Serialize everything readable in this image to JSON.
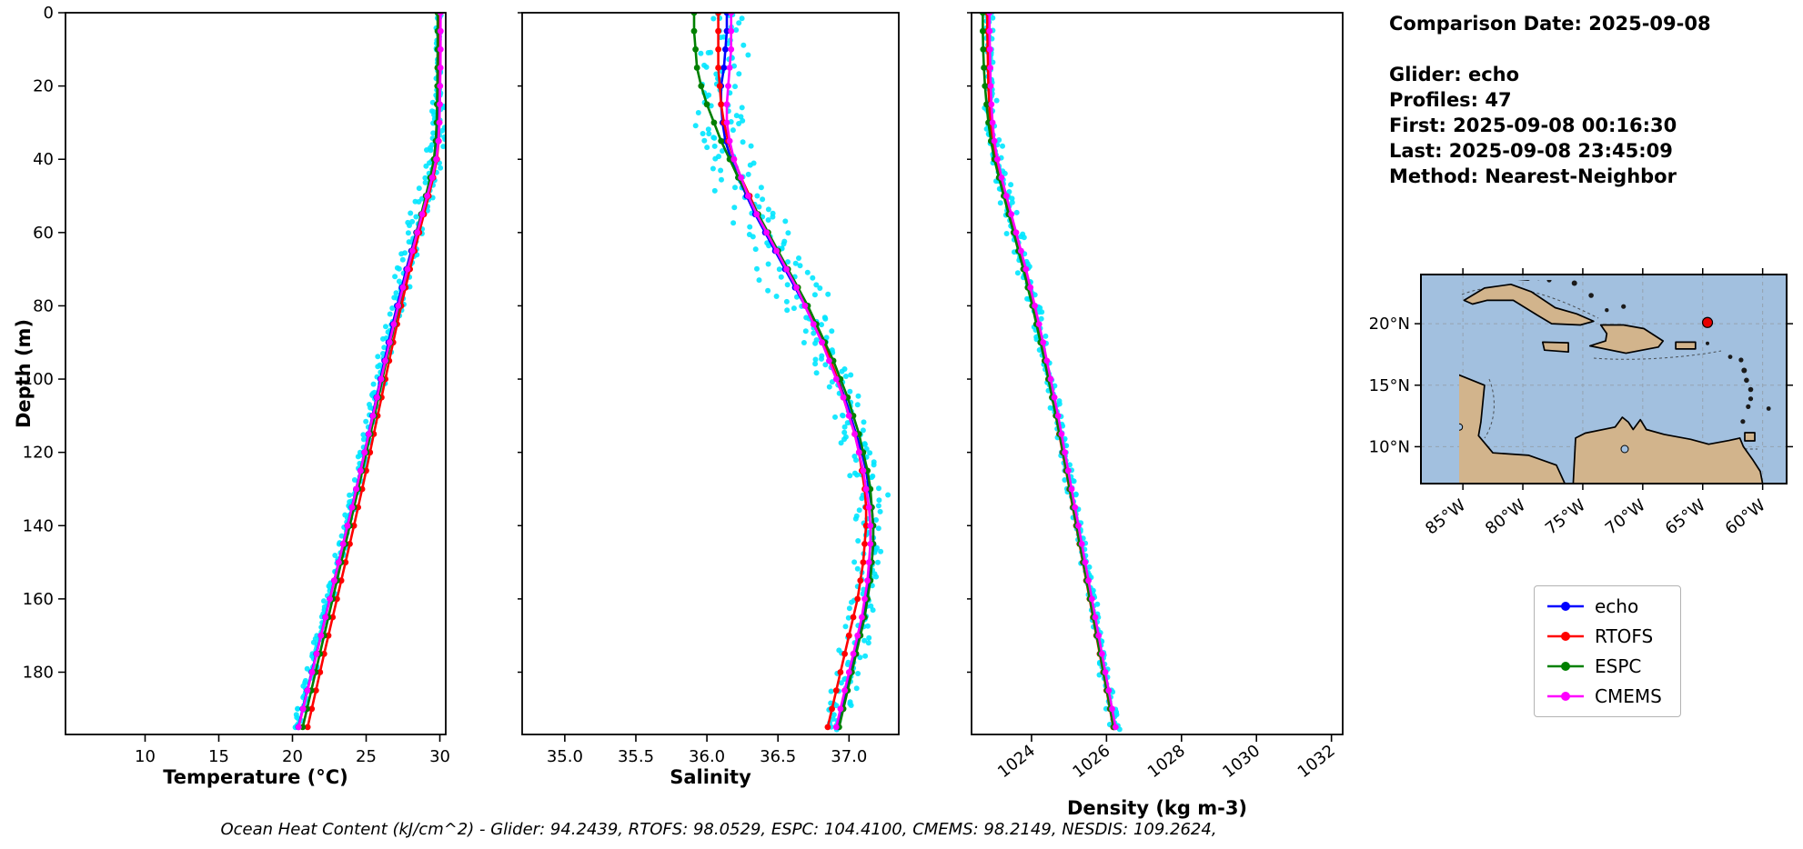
{
  "info_panel": {
    "comparison_date": "Comparison Date: 2025-09-08",
    "glider": "Glider: echo",
    "profiles": "Profiles: 47",
    "first": "First: 2025-09-08 00:16:30",
    "last": "Last: 2025-09-08 23:45:09",
    "method": "Method: Nearest-Neighbor"
  },
  "footer": {
    "ohc_line": "Ocean Heat Content (kJ/cm^2) - Glider: 94.2439,  RTOFS: 98.0529,  ESPC: 104.4100,  CMEMS: 98.2149,  NESDIS: 109.2624,"
  },
  "legend": {
    "items": [
      {
        "label": "echo",
        "color": "#0000ff"
      },
      {
        "label": "RTOFS",
        "color": "#ff0000"
      },
      {
        "label": "ESPC",
        "color": "#008000"
      },
      {
        "label": "CMEMS",
        "color": "#ff00ff"
      }
    ]
  },
  "map": {
    "extent": {
      "lon_west_w": 88.5,
      "lon_east_w": 58.0,
      "lat_north": 24.0,
      "lat_south": 7.0
    },
    "lon_ticks": [
      {
        "value_w": 85,
        "label": "85°W"
      },
      {
        "value_w": 80,
        "label": "80°W"
      },
      {
        "value_w": 75,
        "label": "75°W"
      },
      {
        "value_w": 70,
        "label": "70°W"
      },
      {
        "value_w": 65,
        "label": "65°W"
      },
      {
        "value_w": 60,
        "label": "60°W"
      }
    ],
    "lat_ticks": [
      {
        "value_n": 20,
        "label": "20°N"
      },
      {
        "value_n": 15,
        "label": "15°N"
      },
      {
        "value_n": 10,
        "label": "10°N"
      }
    ],
    "glider_marker": {
      "lon_w": 64.6,
      "lat_n": 20.1,
      "color": "#e60000"
    },
    "ocean_color": "#a2c0df",
    "land_color": "#d2b48c",
    "coast_color": "#000000"
  },
  "chart_data": {
    "type": "line",
    "subtype": "vertical-profile",
    "ylabel": "Depth (m)",
    "ylim": [
      0,
      197
    ],
    "depth_ticks": [
      0,
      20,
      40,
      60,
      80,
      100,
      120,
      140,
      160,
      180
    ],
    "depths": [
      0,
      5,
      10,
      15,
      20,
      25,
      30,
      35,
      40,
      45,
      50,
      55,
      60,
      65,
      70,
      75,
      80,
      85,
      90,
      95,
      100,
      105,
      110,
      115,
      120,
      125,
      130,
      135,
      140,
      145,
      150,
      155,
      160,
      165,
      170,
      175,
      180,
      185,
      190,
      195
    ],
    "series_names": [
      "echo",
      "RTOFS",
      "ESPC",
      "CMEMS"
    ],
    "series_colors": [
      "#0000ff",
      "#ff0000",
      "#008000",
      "#ff00ff"
    ],
    "scatter": {
      "name": "raw-glider-observations",
      "color": "#00e5ff",
      "amplitude": [
        0.35,
        0.11,
        0.12
      ]
    },
    "panels": [
      {
        "id": "temperature",
        "xlabel": "Temperature (°C)",
        "xlim": [
          4.6,
          30.4
        ],
        "xtick_values": [
          10,
          15,
          20,
          25,
          30
        ],
        "xtick_labels": [
          "10",
          "15",
          "20",
          "25",
          "30"
        ],
        "xtick_rotation": 0,
        "series": {
          "echo": [
            29.95,
            29.95,
            29.95,
            29.94,
            29.93,
            29.92,
            29.9,
            29.85,
            29.7,
            29.42,
            29.08,
            28.74,
            28.4,
            28.06,
            27.73,
            27.41,
            27.1,
            26.8,
            26.52,
            26.24,
            25.97,
            25.7,
            25.43,
            25.16,
            24.89,
            24.61,
            24.32,
            24.03,
            23.73,
            23.43,
            23.13,
            22.83,
            22.53,
            22.23,
            21.93,
            21.62,
            21.31,
            21.0,
            20.7,
            20.4
          ],
          "RTOFS": [
            30.02,
            30.02,
            30.02,
            30.01,
            30.0,
            29.99,
            29.97,
            29.92,
            29.8,
            29.55,
            29.24,
            28.92,
            28.6,
            28.28,
            27.97,
            27.67,
            27.38,
            27.1,
            26.83,
            26.56,
            26.3,
            26.04,
            25.78,
            25.52,
            25.26,
            25.0,
            24.73,
            24.45,
            24.17,
            23.89,
            23.6,
            23.31,
            23.02,
            22.73,
            22.44,
            22.15,
            21.87,
            21.59,
            21.31,
            21.03
          ],
          "ESPC": [
            29.85,
            29.85,
            29.85,
            29.84,
            29.83,
            29.81,
            29.78,
            29.72,
            29.6,
            29.35,
            29.05,
            28.74,
            28.43,
            28.12,
            27.81,
            27.51,
            27.22,
            26.93,
            26.65,
            26.37,
            26.1,
            25.83,
            25.56,
            25.29,
            25.02,
            24.74,
            24.46,
            24.18,
            23.89,
            23.6,
            23.31,
            23.02,
            22.73,
            22.44,
            22.15,
            21.86,
            21.57,
            21.28,
            20.99,
            20.7
          ],
          "CMEMS": [
            30.05,
            30.05,
            30.05,
            30.04,
            30.02,
            30.0,
            29.97,
            29.9,
            29.76,
            29.48,
            29.14,
            28.8,
            28.47,
            28.14,
            27.81,
            27.49,
            27.18,
            26.88,
            26.59,
            26.3,
            26.02,
            25.74,
            25.46,
            25.18,
            24.9,
            24.62,
            24.33,
            24.04,
            23.74,
            23.44,
            23.14,
            22.84,
            22.54,
            22.24,
            21.94,
            21.64,
            21.33,
            21.02,
            20.72,
            20.42
          ]
        }
      },
      {
        "id": "salinity",
        "xlabel": "Salinity",
        "xlim": [
          34.7,
          37.35
        ],
        "xtick_values": [
          35.0,
          35.5,
          36.0,
          36.5,
          37.0
        ],
        "xtick_labels": [
          "35.0",
          "35.5",
          "36.0",
          "36.5",
          "37.0"
        ],
        "xtick_rotation": 0,
        "series": {
          "echo": [
            36.14,
            36.14,
            36.13,
            36.12,
            36.1,
            36.1,
            36.11,
            36.13,
            36.17,
            36.22,
            36.28,
            36.34,
            36.41,
            36.48,
            36.55,
            36.62,
            36.69,
            36.75,
            36.81,
            36.87,
            36.92,
            36.97,
            37.01,
            37.05,
            37.09,
            37.12,
            37.14,
            37.16,
            37.17,
            37.17,
            37.16,
            37.14,
            37.12,
            37.1,
            37.07,
            37.04,
            37.01,
            36.98,
            36.95,
            36.92
          ],
          "RTOFS": [
            36.08,
            36.08,
            36.08,
            36.08,
            36.09,
            36.1,
            36.12,
            36.15,
            36.19,
            36.24,
            36.3,
            36.36,
            36.43,
            36.5,
            36.57,
            36.64,
            36.7,
            36.76,
            36.82,
            36.87,
            36.92,
            36.96,
            37.0,
            37.04,
            37.07,
            37.09,
            37.11,
            37.12,
            37.12,
            37.11,
            37.1,
            37.08,
            37.06,
            37.03,
            37.0,
            36.97,
            36.94,
            36.91,
            36.88,
            36.85
          ],
          "ESPC": [
            35.91,
            35.91,
            35.92,
            35.93,
            35.96,
            36.0,
            36.05,
            36.1,
            36.16,
            36.22,
            36.29,
            36.36,
            36.43,
            36.5,
            36.57,
            36.64,
            36.71,
            36.77,
            36.83,
            36.89,
            36.94,
            36.99,
            37.03,
            37.07,
            37.1,
            37.13,
            37.15,
            37.16,
            37.17,
            37.17,
            37.16,
            37.15,
            37.13,
            37.11,
            37.08,
            37.05,
            37.02,
            36.99,
            36.96,
            36.93
          ],
          "CMEMS": [
            36.17,
            36.17,
            36.17,
            36.16,
            36.15,
            36.14,
            36.14,
            36.16,
            36.19,
            36.24,
            36.29,
            36.35,
            36.42,
            36.49,
            36.56,
            36.63,
            36.69,
            36.75,
            36.81,
            36.86,
            36.91,
            36.96,
            37.0,
            37.04,
            37.07,
            37.1,
            37.12,
            37.14,
            37.15,
            37.15,
            37.14,
            37.13,
            37.11,
            37.09,
            37.06,
            37.03,
            37.0,
            36.97,
            36.94,
            36.91
          ]
        }
      },
      {
        "id": "density",
        "xlabel": "Density (kg m-3)",
        "xlim": [
          1022.4,
          1032.3
        ],
        "xtick_values": [
          1024,
          1026,
          1028,
          1030,
          1032
        ],
        "xtick_labels": [
          "1024",
          "1026",
          "1028",
          "1030",
          "1032"
        ],
        "xtick_rotation": -38,
        "series": {
          "echo": [
            1022.85,
            1022.85,
            1022.86,
            1022.87,
            1022.88,
            1022.9,
            1022.93,
            1022.98,
            1023.06,
            1023.17,
            1023.3,
            1023.43,
            1023.56,
            1023.69,
            1023.82,
            1023.94,
            1024.06,
            1024.17,
            1024.28,
            1024.38,
            1024.48,
            1024.58,
            1024.68,
            1024.77,
            1024.86,
            1024.95,
            1025.04,
            1025.13,
            1025.22,
            1025.31,
            1025.4,
            1025.49,
            1025.58,
            1025.67,
            1025.76,
            1025.85,
            1025.94,
            1026.03,
            1026.12,
            1026.21
          ],
          "RTOFS": [
            1022.82,
            1022.82,
            1022.83,
            1022.84,
            1022.85,
            1022.87,
            1022.9,
            1022.95,
            1023.03,
            1023.14,
            1023.27,
            1023.4,
            1023.53,
            1023.66,
            1023.79,
            1023.91,
            1024.03,
            1024.14,
            1024.25,
            1024.35,
            1024.45,
            1024.55,
            1024.65,
            1024.74,
            1024.83,
            1024.92,
            1025.01,
            1025.1,
            1025.19,
            1025.28,
            1025.37,
            1025.46,
            1025.55,
            1025.64,
            1025.73,
            1025.82,
            1025.91,
            1026.0,
            1026.09,
            1026.18
          ],
          "ESPC": [
            1022.7,
            1022.7,
            1022.71,
            1022.73,
            1022.76,
            1022.8,
            1022.85,
            1022.92,
            1023.01,
            1023.13,
            1023.26,
            1023.39,
            1023.52,
            1023.65,
            1023.78,
            1023.9,
            1024.02,
            1024.13,
            1024.24,
            1024.35,
            1024.45,
            1024.55,
            1024.65,
            1024.75,
            1024.84,
            1024.93,
            1025.02,
            1025.11,
            1025.2,
            1025.29,
            1025.38,
            1025.47,
            1025.56,
            1025.65,
            1025.74,
            1025.83,
            1025.92,
            1026.01,
            1026.1,
            1026.19
          ],
          "CMEMS": [
            1022.88,
            1022.88,
            1022.89,
            1022.9,
            1022.91,
            1022.93,
            1022.96,
            1023.01,
            1023.09,
            1023.2,
            1023.33,
            1023.46,
            1023.59,
            1023.72,
            1023.85,
            1023.97,
            1024.09,
            1024.2,
            1024.31,
            1024.41,
            1024.51,
            1024.61,
            1024.71,
            1024.8,
            1024.89,
            1024.98,
            1025.07,
            1025.16,
            1025.25,
            1025.34,
            1025.43,
            1025.52,
            1025.61,
            1025.7,
            1025.79,
            1025.88,
            1025.97,
            1026.06,
            1026.15,
            1026.24
          ]
        }
      }
    ]
  }
}
